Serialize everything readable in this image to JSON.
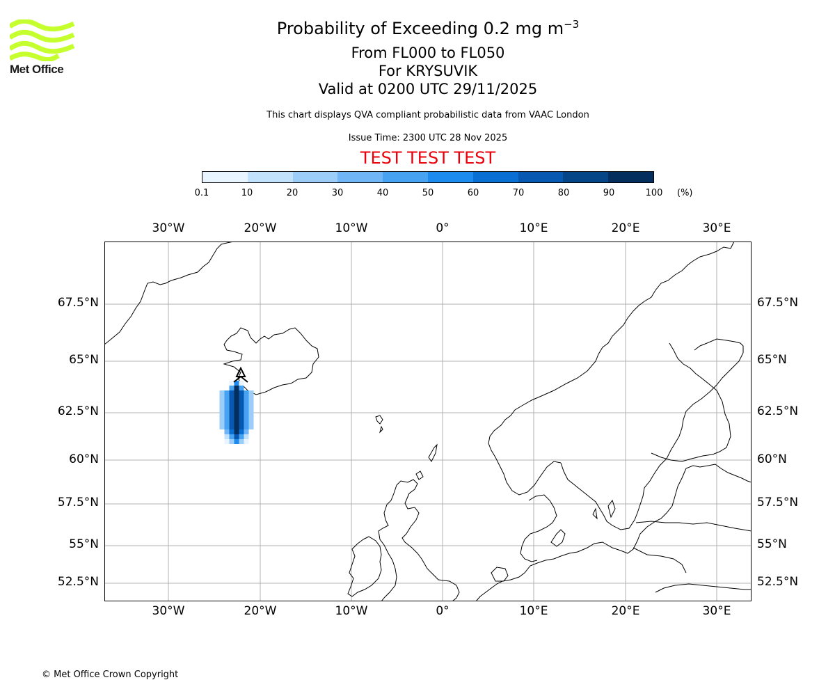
{
  "logo": {
    "text": "Met Office",
    "accent": "#c6ff2e"
  },
  "title": {
    "line1": "Probability of Exceeding 0.2 mg m",
    "line1_sup": "−3",
    "line2": "From FL000 to FL050",
    "line3": "For KRYSUVIK",
    "line4": "Valid at 0200 UTC 29/11/2025"
  },
  "subtitle": "This chart displays QVA compliant probabilistic data from VAAC London",
  "issue_time": "Issue Time: 2300 UTC 28 Nov 2025",
  "test_banner": "TEST TEST TEST",
  "colorbar": {
    "ticks": [
      "0.1",
      "10",
      "20",
      "30",
      "40",
      "50",
      "60",
      "70",
      "80",
      "90",
      "100"
    ],
    "unit": "(%)",
    "colors": [
      "#e8f4ff",
      "#c2e1fb",
      "#9ccdf8",
      "#70b5f5",
      "#47a2f2",
      "#1d8bee",
      "#0a6fd2",
      "#0658b0",
      "#054688",
      "#032e5e"
    ]
  },
  "map": {
    "lon_labels": [
      "30°W",
      "20°W",
      "10°W",
      "0°",
      "10°E",
      "20°E",
      "30°E"
    ],
    "lat_labels": [
      "67.5°N",
      "65°N",
      "62.5°N",
      "60°N",
      "57.5°N",
      "55°N",
      "52.5°N"
    ],
    "volcano": "KRYSUVIK"
  },
  "copyright": "© Met Office Crown Copyright"
}
